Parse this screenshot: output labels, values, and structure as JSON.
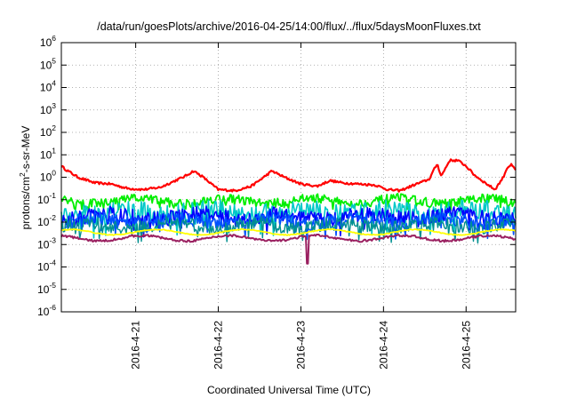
{
  "chart_data": {
    "type": "line",
    "title": "/data/run/goesPlots/archive/2016-04-25/14:00/flux/../flux/5daysMoonFluxes.txt",
    "xlabel": "Coordinated Universal Time (UTC)",
    "ylabel": "protons/cm2-s-sr-MeV",
    "ylabel_parts": {
      "before": "protons/cm",
      "sup": "2",
      "after": "-s-sr-MeV"
    },
    "y_scale": "log",
    "ylim_exp": [
      -6,
      6
    ],
    "y_ticks": [
      {
        "base": "10",
        "exp": "6"
      },
      {
        "base": "10",
        "exp": "5"
      },
      {
        "base": "10",
        "exp": "4"
      },
      {
        "base": "10",
        "exp": "3"
      },
      {
        "base": "10",
        "exp": "2"
      },
      {
        "base": "10",
        "exp": "1"
      },
      {
        "base": "10",
        "exp": "0"
      },
      {
        "base": "10",
        "exp": "-1"
      },
      {
        "base": "10",
        "exp": "-2"
      },
      {
        "base": "10",
        "exp": "-3"
      },
      {
        "base": "10",
        "exp": "-4"
      },
      {
        "base": "10",
        "exp": "-5"
      },
      {
        "base": "10",
        "exp": "-6"
      }
    ],
    "xlim_days": [
      20.1,
      25.6
    ],
    "x_ticks": [
      {
        "label": "2016-4-21",
        "day": 21
      },
      {
        "label": "2016-4-22",
        "day": 22
      },
      {
        "label": "2016-4-23",
        "day": 23
      },
      {
        "label": "2016-4-24",
        "day": 24
      },
      {
        "label": "2016-4-25",
        "day": 25
      }
    ],
    "grid": true,
    "series": [
      {
        "color": "#ff0000",
        "stroke": 2.2,
        "noise": 0.05,
        "points": [
          [
            20.1,
            -0.6
          ],
          [
            20.1,
            0.5
          ],
          [
            20.15,
            0.35
          ],
          [
            20.3,
            0.0
          ],
          [
            20.5,
            -0.25
          ],
          [
            20.7,
            -0.3
          ],
          [
            20.9,
            -0.5
          ],
          [
            21.1,
            -0.55
          ],
          [
            21.3,
            -0.45
          ],
          [
            21.45,
            -0.2
          ],
          [
            21.6,
            0.05
          ],
          [
            21.7,
            0.28
          ],
          [
            21.8,
            0.05
          ],
          [
            22.0,
            -0.55
          ],
          [
            22.2,
            -0.6
          ],
          [
            22.4,
            -0.4
          ],
          [
            22.55,
            0.0
          ],
          [
            22.65,
            0.28
          ],
          [
            22.8,
            0.0
          ],
          [
            23.0,
            -0.3
          ],
          [
            23.2,
            -0.4
          ],
          [
            23.35,
            -0.15
          ],
          [
            23.5,
            -0.25
          ],
          [
            23.7,
            -0.3
          ],
          [
            23.9,
            -0.35
          ],
          [
            24.05,
            -0.55
          ],
          [
            24.2,
            -0.6
          ],
          [
            24.4,
            -0.3
          ],
          [
            24.55,
            -0.1
          ],
          [
            24.65,
            0.6
          ],
          [
            24.7,
            0.05
          ],
          [
            24.8,
            0.75
          ],
          [
            24.9,
            0.75
          ],
          [
            25.0,
            0.5
          ],
          [
            25.1,
            0.1
          ],
          [
            25.25,
            -0.3
          ],
          [
            25.35,
            -0.55
          ],
          [
            25.45,
            0.0
          ],
          [
            25.5,
            0.45
          ],
          [
            25.55,
            0.55
          ],
          [
            25.6,
            0.3
          ]
        ]
      },
      {
        "color": "#00ee00",
        "stroke": 1.8,
        "noise": 0.2,
        "base": -1.05
      },
      {
        "color": "#00c8c8",
        "stroke": 1.6,
        "noise": 0.45,
        "base": -1.55
      },
      {
        "color": "#0000ff",
        "stroke": 1.6,
        "noise": 0.35,
        "base": -1.75
      },
      {
        "color": "#0050ff",
        "stroke": 1.6,
        "noise": 0.3,
        "base": -1.95
      },
      {
        "color": "#009090",
        "stroke": 1.4,
        "noise": 0.3,
        "base": -2.15
      },
      {
        "color": "#ffff00",
        "stroke": 1.8,
        "noise": 0.02,
        "base": -2.45
      },
      {
        "color": "#9a2060",
        "stroke": 2.0,
        "noise": 0.05,
        "base": -2.72,
        "spike": {
          "day": 23.08,
          "value": -3.85
        }
      }
    ]
  }
}
